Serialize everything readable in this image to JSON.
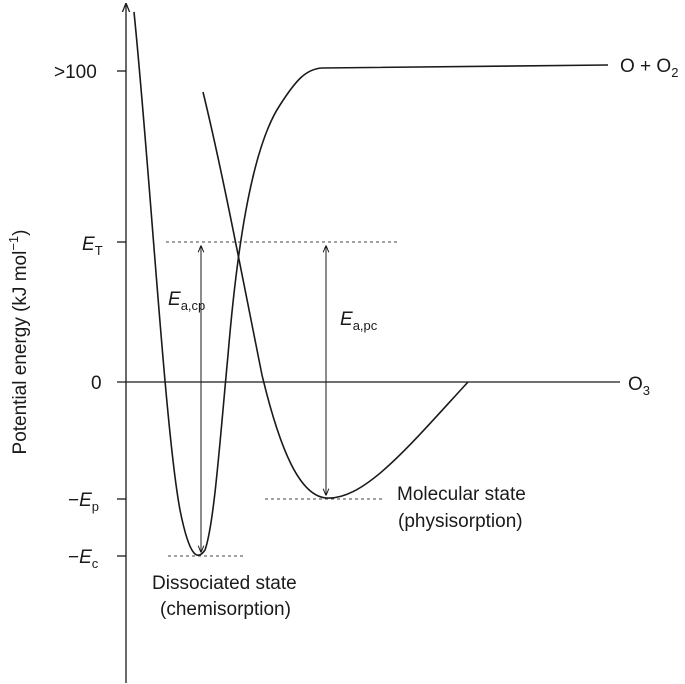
{
  "y_axis": {
    "label": "Potential energy (kJ mol",
    "label_superscript": "−1",
    "label_close": ")"
  },
  "ticks": {
    "top": ">100",
    "et_main": "E",
    "et_sub": "T",
    "zero": "0",
    "ep_minus": "−",
    "ep_main": "E",
    "ep_sub": "p",
    "ec_minus": "−",
    "ec_main": "E",
    "ec_sub": "c"
  },
  "labels": {
    "o_plus_o2_main": "O + O",
    "o_plus_o2_sub": "2",
    "o3_main": "O",
    "o3_sub": "3",
    "ea_cp_main": "E",
    "ea_cp_sub": "a,cp",
    "ea_pc_main": "E",
    "ea_pc_sub": "a,pc",
    "molecular_state": "Molecular state",
    "physisorption": "(physisorption)",
    "dissociated_state": "Dissociated state",
    "chemisorption": "(chemisorption)"
  },
  "colors": {
    "line": "#1a1a1a",
    "background": "#ffffff"
  }
}
